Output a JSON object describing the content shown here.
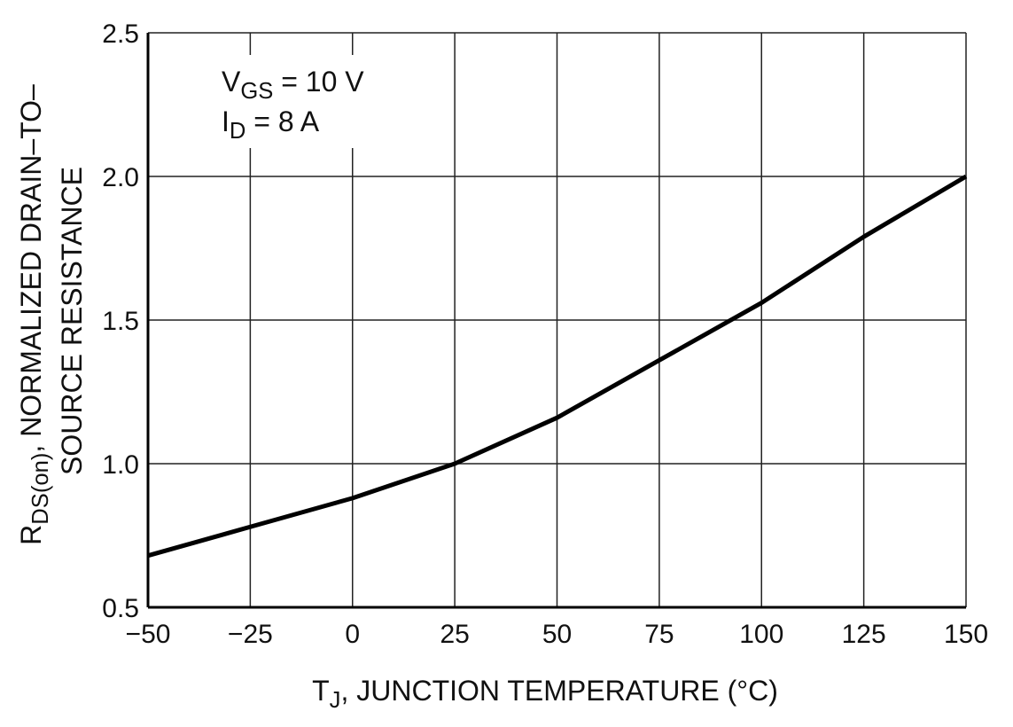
{
  "chart_data": {
    "type": "line",
    "x_label": {
      "text": "T",
      "sub": "J",
      "rest": ", JUNCTION TEMPERATURE (°C)"
    },
    "y_label": {
      "text": "R",
      "sub": "DS(on)",
      "rest": ", NORMALIZED DRAIN–TO–",
      "line2": "SOURCE RESISTANCE"
    },
    "annotations": [
      {
        "text": "V",
        "sub": "GS",
        "rest": " = 10 V"
      },
      {
        "text": "I",
        "sub": "D",
        "rest": " = 8 A"
      }
    ],
    "x": [
      -50,
      -25,
      0,
      25,
      50,
      75,
      100,
      125,
      150
    ],
    "values": [
      0.68,
      0.78,
      0.88,
      1.0,
      1.16,
      1.36,
      1.56,
      1.79,
      2.0
    ],
    "color": "#000000",
    "xlim": [
      -50,
      150
    ],
    "xticks": [
      {
        "value": -50,
        "label": "−50"
      },
      {
        "value": -25,
        "label": "−25"
      },
      0,
      25,
      50,
      75,
      100,
      125,
      150
    ],
    "ylim": [
      0.5,
      2.5
    ],
    "yticks": [
      0.5,
      {
        "value": 1,
        "label": "1.0"
      },
      1.5,
      {
        "value": 2,
        "label": "2.0"
      },
      2.5
    ],
    "grid": true
  }
}
